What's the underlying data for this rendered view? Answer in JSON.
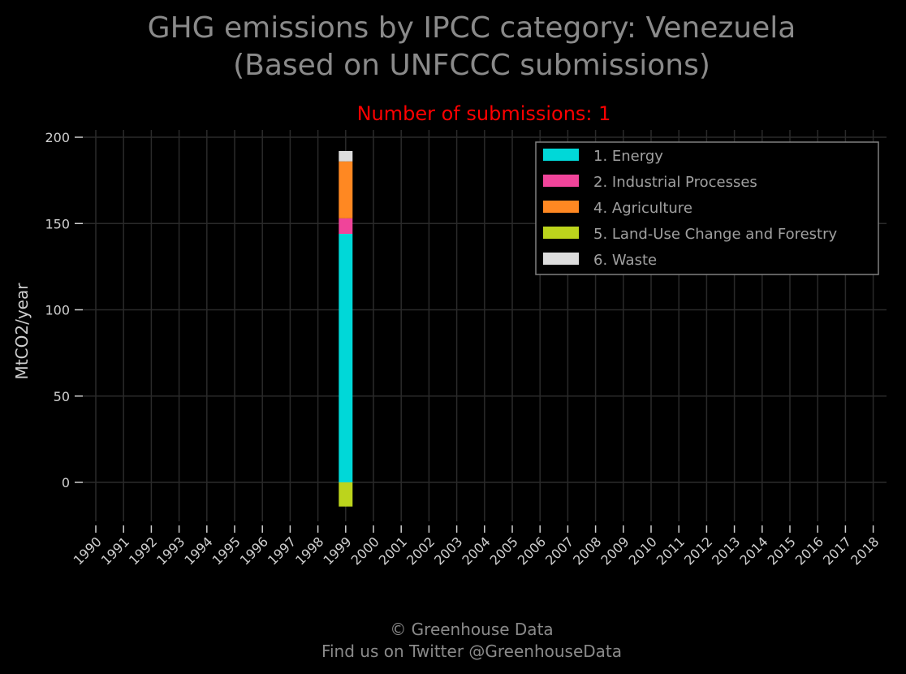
{
  "chart_data": {
    "type": "bar",
    "stacked": true,
    "title_line1": "GHG emissions by IPCC category: Venezuela",
    "title_line2": "(Based on UNFCCC submissions)",
    "subtitle": "Number of submissions: 1",
    "ylabel": "MtCO2/year",
    "xlabel": "",
    "ylim": [
      -25,
      202
    ],
    "yticks": [
      0,
      50,
      100,
      150,
      200
    ],
    "categories": [
      "1990",
      "1991",
      "1992",
      "1993",
      "1994",
      "1995",
      "1996",
      "1997",
      "1998",
      "1999",
      "2000",
      "2001",
      "2002",
      "2003",
      "2004",
      "2005",
      "2006",
      "2007",
      "2008",
      "2009",
      "2010",
      "2011",
      "2012",
      "2013",
      "2014",
      "2015",
      "2016",
      "2017",
      "2018"
    ],
    "grid": true,
    "legend_position": "top-right",
    "series": [
      {
        "name": "1. Energy",
        "color": "#00d8d8",
        "values": {
          "1999": 144
        }
      },
      {
        "name": "2. Industrial Processes",
        "color": "#f0449a",
        "values": {
          "1999": 9
        }
      },
      {
        "name": "4. Agriculture",
        "color": "#ff8822",
        "values": {
          "1999": 33
        }
      },
      {
        "name": "5. Land-Use Change and Forestry",
        "color": "#bcd41c",
        "values": {
          "1999": -14
        }
      },
      {
        "name": "6. Waste",
        "color": "#dddddd",
        "values": {
          "1999": 6
        }
      }
    ]
  },
  "footer": {
    "line1": "© Greenhouse Data",
    "line2": "Find us on Twitter @GreenhouseData"
  }
}
